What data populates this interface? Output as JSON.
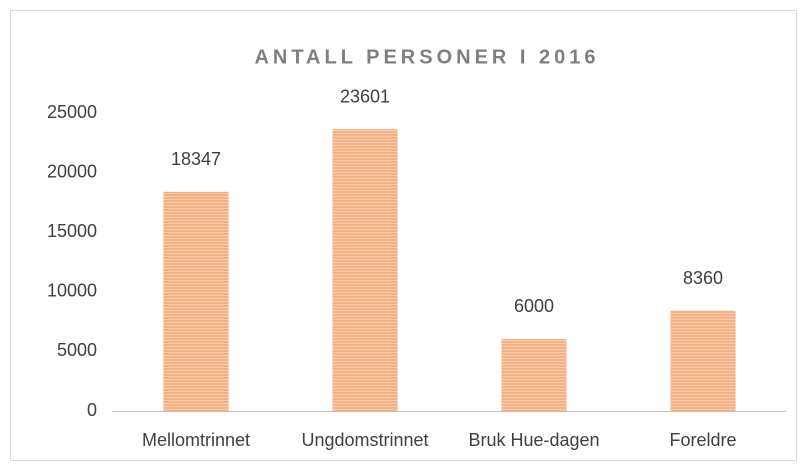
{
  "chart_data": {
    "type": "bar",
    "title": "ANTALL PERSONER I 2016",
    "categories": [
      "Mellomtrinnet",
      "Ungdomstrinnet",
      "Bruk Hue-dagen",
      "Foreldre"
    ],
    "values": [
      18347,
      23601,
      6000,
      8360
    ],
    "color": "#f4b183",
    "ylim": [
      0,
      25000
    ],
    "yticks": [
      0,
      5000,
      10000,
      15000,
      20000,
      25000
    ],
    "grid": false
  }
}
